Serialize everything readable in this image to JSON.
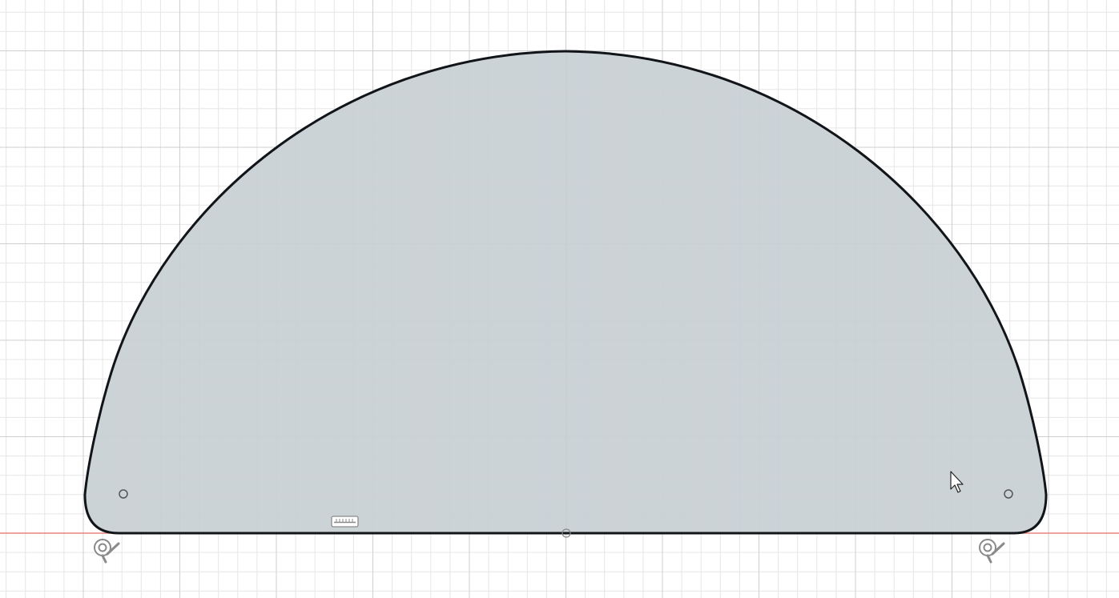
{
  "viewport": {
    "view": "sketch",
    "background_color": "#ffffff",
    "grid": {
      "visible": true,
      "minor_line_color": "#e6e6e6",
      "major_line_color": "#cfcfcf"
    },
    "x_axis_color": "#e8867b"
  },
  "sketch": {
    "profile": "semicircle-with-rounded-bottom-corners",
    "fill_color": "#c9d1d5",
    "stroke_color": "#111418",
    "constraints": [
      {
        "type": "fix",
        "icon": "fix-constraint-icon"
      },
      {
        "type": "fix",
        "icon": "fix-constraint-icon"
      },
      {
        "type": "horizontal",
        "icon": "horizontal-constraint-icon"
      }
    ],
    "points": [
      {
        "role": "left-fillet-center",
        "icon": "sketch-point-icon"
      },
      {
        "role": "right-fillet-center",
        "icon": "sketch-point-icon"
      },
      {
        "role": "origin",
        "icon": "origin-point-icon"
      }
    ]
  },
  "cursor": {
    "icon": "mouse-pointer-icon"
  }
}
